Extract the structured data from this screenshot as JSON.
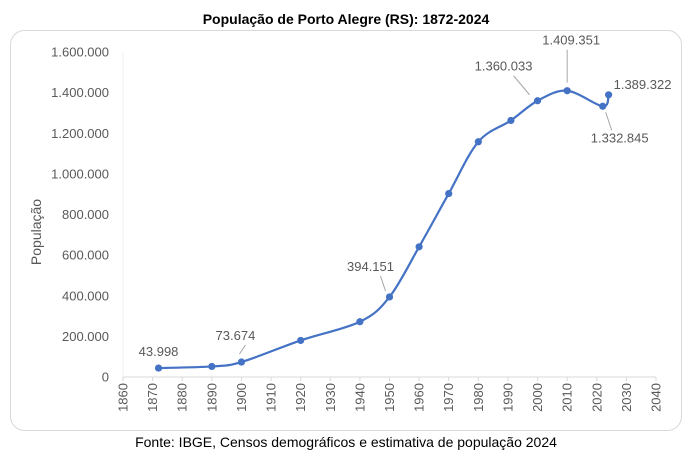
{
  "chart_data": {
    "type": "line",
    "title": "População de Porto Alegre (RS): 1872-2024",
    "ylabel": "População",
    "xlabel": "",
    "source": "Fonte: IBGE, Censos demográficos e estimativa de população 2024",
    "xlim": [
      1860,
      2040
    ],
    "ylim": [
      0,
      1600000
    ],
    "x_ticks": [
      "1860",
      "1870",
      "1880",
      "1890",
      "1900",
      "1910",
      "1920",
      "1930",
      "1940",
      "1950",
      "1960",
      "1970",
      "1980",
      "1990",
      "2000",
      "2010",
      "2020",
      "2030",
      "2040"
    ],
    "y_ticks": [
      "0",
      "200.000",
      "400.000",
      "600.000",
      "800.000",
      "1.000.000",
      "1.200.000",
      "1.400.000",
      "1.600.000"
    ],
    "grid": false,
    "line_color": "#4472C4",
    "smooth": true,
    "points": [
      {
        "x": 1872,
        "y": 43998,
        "label": "43.998"
      },
      {
        "x": 1890,
        "y": 52000
      },
      {
        "x": 1900,
        "y": 73674,
        "label": "73.674"
      },
      {
        "x": 1920,
        "y": 180000
      },
      {
        "x": 1940,
        "y": 272000
      },
      {
        "x": 1950,
        "y": 394151,
        "label": "394.151"
      },
      {
        "x": 1960,
        "y": 641000
      },
      {
        "x": 1970,
        "y": 903000
      },
      {
        "x": 1980,
        "y": 1158000
      },
      {
        "x": 1991,
        "y": 1263000
      },
      {
        "x": 2000,
        "y": 1360033,
        "label": "1.360.033"
      },
      {
        "x": 2010,
        "y": 1409351,
        "label": "1.409.351"
      },
      {
        "x": 2022,
        "y": 1332845,
        "label": "1.332.845"
      },
      {
        "x": 2024,
        "y": 1389322,
        "label": "1.389.322"
      }
    ]
  }
}
